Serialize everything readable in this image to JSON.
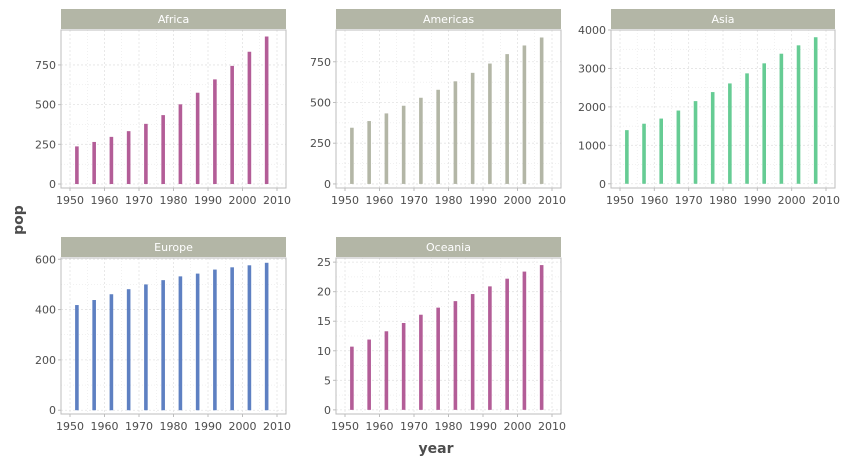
{
  "chart_data": {
    "type": "bar",
    "xlabel": "year",
    "ylabel": "pop",
    "x_ticks": [
      "1950",
      "1960",
      "1970",
      "1980",
      "1990",
      "2000",
      "2010"
    ],
    "xlim": [
      1950,
      2010
    ],
    "grid": true,
    "panels": [
      {
        "name": "Africa",
        "color": "#b35d97",
        "ylim": [
          -25,
          970
        ],
        "y_ticks": [
          0,
          250,
          500,
          750
        ],
        "x": [
          1952,
          1957,
          1962,
          1967,
          1972,
          1977,
          1982,
          1987,
          1992,
          1997,
          2002,
          2007
        ],
        "values": [
          237,
          265,
          297,
          333,
          379,
          434,
          502,
          575,
          659,
          744,
          833,
          929
        ]
      },
      {
        "name": "Americas",
        "color": "#b3b6a6",
        "ylim": [
          -25,
          945
        ],
        "y_ticks": [
          0,
          250,
          500,
          750
        ],
        "x": [
          1952,
          1957,
          1962,
          1967,
          1972,
          1977,
          1982,
          1987,
          1992,
          1997,
          2002,
          2007
        ],
        "values": [
          345,
          386,
          433,
          480,
          529,
          578,
          630,
          682,
          739,
          797,
          850,
          899
        ]
      },
      {
        "name": "Asia",
        "color": "#66cc94",
        "ylim": [
          -110,
          4000
        ],
        "y_ticks": [
          0,
          1000,
          2000,
          3000,
          4000
        ],
        "x": [
          1952,
          1957,
          1962,
          1967,
          1972,
          1977,
          1982,
          1987,
          1992,
          1997,
          2002,
          2007
        ],
        "values": [
          1395,
          1562,
          1696,
          1905,
          2150,
          2385,
          2610,
          2872,
          3133,
          3383,
          3601,
          3812
        ]
      },
      {
        "name": "Europe",
        "color": "#5e80c2",
        "ylim": [
          -15,
          605
        ],
        "y_ticks": [
          0,
          200,
          400,
          600
        ],
        "x": [
          1952,
          1957,
          1962,
          1967,
          1972,
          1977,
          1982,
          1987,
          1992,
          1997,
          2002,
          2007
        ],
        "values": [
          418,
          438,
          461,
          481,
          500,
          517,
          532,
          543,
          559,
          568,
          576,
          586
        ]
      },
      {
        "name": "Oceania",
        "color": "#b35d97",
        "ylim": [
          -0.7,
          25.7
        ],
        "y_ticks": [
          0,
          5,
          10,
          15,
          20,
          25
        ],
        "x": [
          1952,
          1957,
          1962,
          1967,
          1972,
          1977,
          1982,
          1987,
          1992,
          1997,
          2002,
          2007
        ],
        "values": [
          10.7,
          11.9,
          13.3,
          14.7,
          16.1,
          17.3,
          18.4,
          19.6,
          20.9,
          22.2,
          23.4,
          24.5
        ]
      }
    ]
  },
  "theme": {
    "strip_bg": "#b3b6a6",
    "strip_text": "#ffffff",
    "panel_border": "#bdbdbd",
    "grid_color": "#e3e3e3",
    "text_color": "#4d4d4d"
  }
}
